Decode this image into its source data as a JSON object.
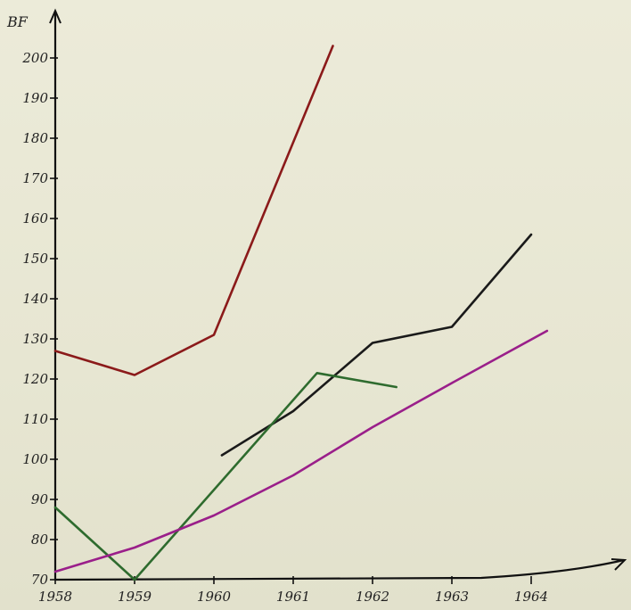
{
  "chart_data": {
    "type": "line",
    "ylabel": "BF",
    "xlabel": "",
    "title": "",
    "x_ticks": [
      "1958",
      "1959",
      "1960",
      "1961",
      "1962",
      "1963",
      "1964"
    ],
    "y_ticks": [
      "70",
      "80",
      "90",
      "100",
      "110",
      "120",
      "130",
      "140",
      "150",
      "160",
      "170",
      "180",
      "190",
      "200"
    ],
    "xlim": [
      1958,
      1965.2
    ],
    "ylim": [
      70,
      205
    ],
    "grid": false,
    "series": [
      {
        "color": "#8b1a1a",
        "x": [
          1958,
          1959,
          1960,
          1960.75,
          1961.5
        ],
        "y": [
          127,
          121,
          131,
          167,
          203
        ]
      },
      {
        "color": "#1a1a1a",
        "x": [
          1960.1,
          1961,
          1962,
          1963,
          1964
        ],
        "y": [
          101,
          112,
          129,
          133,
          156
        ]
      },
      {
        "color": "#2e6b2e",
        "x": [
          1958,
          1959,
          1961.3,
          1962.3
        ],
        "y": [
          88,
          70,
          121.5,
          118
        ]
      },
      {
        "color": "#9a1f8a",
        "x": [
          1958,
          1959,
          1960,
          1961,
          1962,
          1963,
          1964.2
        ],
        "y": [
          72,
          78,
          86,
          96,
          108,
          119,
          132
        ]
      }
    ]
  }
}
